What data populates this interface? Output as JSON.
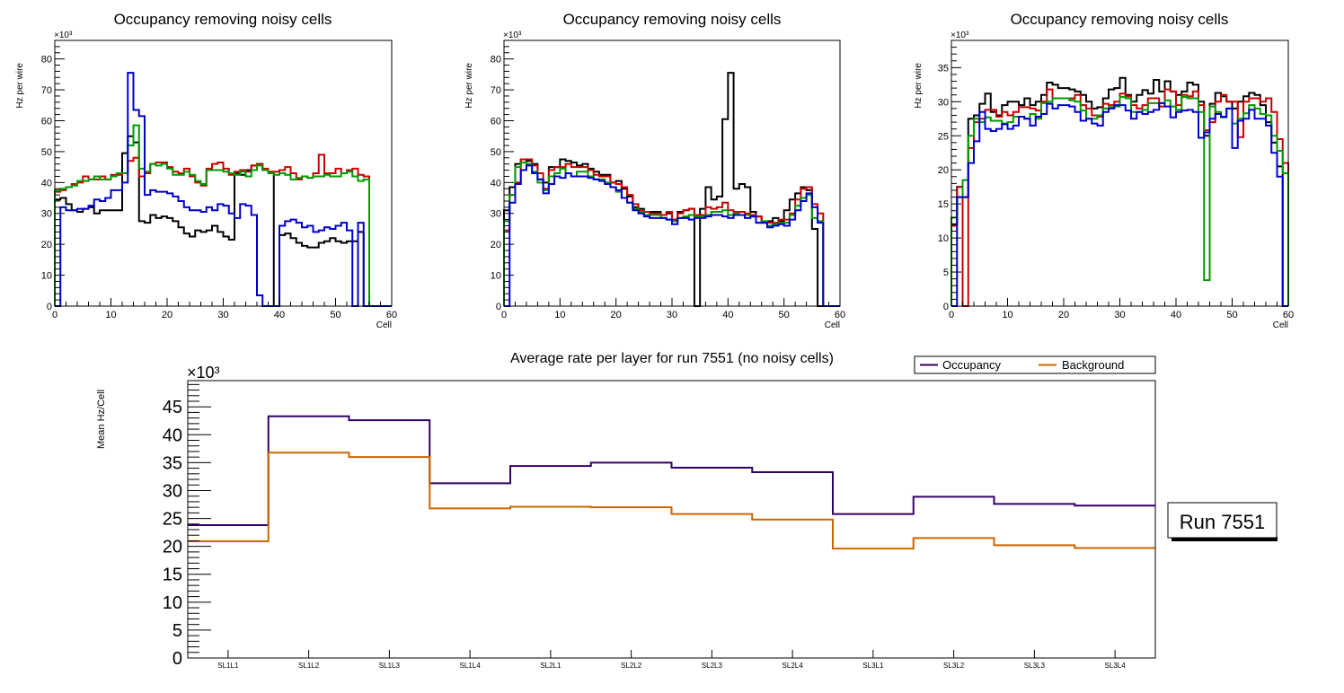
{
  "colors": {
    "black": "#000000",
    "red": "#cc0000",
    "green": "#009900",
    "blue": "#0000cc",
    "occupancy": "#330066",
    "background": "#cc6600"
  },
  "chart_data": [
    {
      "type": "histogram-step",
      "title": "Occupancy removing noisy cells",
      "xlabel": "Cell",
      "ylabel": "Hz per wire",
      "yexponent": "×10³",
      "xlim": [
        0,
        60
      ],
      "ylim": [
        0,
        86
      ],
      "xticks": [
        0,
        10,
        20,
        30,
        40,
        50,
        60
      ],
      "yticks": [
        0,
        10,
        20,
        30,
        40,
        50,
        60,
        70,
        80
      ],
      "bin_width": 1,
      "series": [
        {
          "name": "black",
          "color": "#000000",
          "values": [
            34.5,
            35,
            33,
            31,
            30.5,
            31.5,
            32,
            30,
            31,
            31,
            31,
            31,
            49.5,
            55,
            53,
            27.5,
            27,
            29.5,
            28.5,
            29,
            28.5,
            27.5,
            25.5,
            23.5,
            22.5,
            24.5,
            24,
            24.5,
            26,
            24,
            22.5,
            21.5,
            43,
            42.5,
            44,
            45.5,
            46,
            44,
            43,
            0,
            23,
            23.5,
            22,
            20.5,
            19.5,
            19,
            19,
            20.5,
            21,
            22,
            21,
            20.5,
            21,
            21,
            24,
            0,
            0,
            0,
            0,
            0
          ]
        },
        {
          "name": "red",
          "color": "#cc0000",
          "values": [
            37,
            37.5,
            38.5,
            39.5,
            40,
            42,
            41,
            41,
            42,
            41,
            42.5,
            42.5,
            43,
            47,
            48,
            42,
            43,
            46,
            46.5,
            46.5,
            45,
            43.5,
            43,
            44.5,
            42,
            40,
            39,
            44.5,
            46,
            46.5,
            44.5,
            42.5,
            43.5,
            44,
            43.5,
            45.5,
            46,
            44.5,
            43.5,
            43.5,
            44,
            45,
            43,
            41,
            42,
            41.5,
            43,
            49,
            43,
            43,
            44.5,
            43,
            44,
            44.5,
            42.5,
            42,
            0,
            0,
            0,
            0
          ]
        },
        {
          "name": "green",
          "color": "#009900",
          "values": [
            37.5,
            38,
            38.5,
            39,
            40.5,
            40.5,
            41,
            42,
            41,
            41,
            42,
            43,
            43,
            52,
            58.5,
            44.5,
            43.5,
            46,
            45.5,
            46,
            44.5,
            42.5,
            42.5,
            43.5,
            42.5,
            40.5,
            39.5,
            44,
            44,
            44,
            43.5,
            43,
            42.5,
            43.5,
            42,
            44,
            45.5,
            44,
            43,
            42.5,
            43,
            42.5,
            41,
            41.5,
            42,
            41.5,
            42,
            42,
            42.5,
            42,
            42,
            43,
            43.5,
            42,
            40.5,
            41,
            0,
            0,
            0,
            0
          ]
        },
        {
          "name": "blue",
          "color": "#0000cc",
          "values": [
            0,
            32,
            31,
            31,
            31.5,
            31.5,
            32.5,
            34.5,
            34,
            35,
            37.5,
            37.5,
            40,
            75.5,
            63.5,
            61.5,
            36,
            37.5,
            37,
            37,
            36.5,
            35.5,
            34,
            32,
            31,
            31,
            30.5,
            32,
            31,
            33,
            32.5,
            30,
            28.5,
            33,
            32.5,
            29.5,
            3.5,
            0,
            0,
            0,
            26,
            27.5,
            28,
            27,
            25.5,
            26,
            24,
            24.5,
            25.5,
            25,
            26,
            27,
            24.5,
            0,
            27,
            0,
            0,
            0,
            0,
            0
          ]
        }
      ]
    },
    {
      "type": "histogram-step",
      "title": "Occupancy removing noisy cells",
      "xlabel": "Cell",
      "ylabel": "Hz per wire",
      "yexponent": "×10³",
      "xlim": [
        0,
        60
      ],
      "ylim": [
        0,
        86
      ],
      "xticks": [
        0,
        10,
        20,
        30,
        40,
        50,
        60
      ],
      "yticks": [
        0,
        10,
        20,
        30,
        40,
        50,
        60,
        70,
        80
      ],
      "bin_width": 1,
      "series": [
        {
          "name": "black",
          "color": "#000000",
          "values": [
            31,
            38.5,
            46,
            47.5,
            47,
            46,
            41,
            40,
            45,
            45,
            47.5,
            47,
            46.5,
            45.5,
            46,
            44.5,
            43.5,
            42.5,
            42.5,
            40,
            40.5,
            38,
            35.5,
            32,
            31.5,
            30.5,
            30.5,
            30.5,
            29.5,
            30,
            28,
            30.5,
            31,
            31.5,
            0,
            31.5,
            38.5,
            34.5,
            35.5,
            60.5,
            75.5,
            38,
            39.5,
            38.5,
            30.5,
            29,
            27,
            27.5,
            28.5,
            27.5,
            31,
            34.5,
            36.5,
            38.5,
            37.5,
            25,
            0,
            0,
            0,
            0
          ]
        },
        {
          "name": "red",
          "color": "#cc0000",
          "values": [
            24.5,
            36,
            40,
            47.5,
            47.5,
            45.5,
            43,
            38,
            44,
            45,
            45,
            46,
            45,
            45,
            45,
            44,
            42.5,
            42,
            42,
            40,
            39.5,
            38.5,
            36,
            33,
            31,
            30.5,
            30,
            30,
            29.5,
            30.5,
            28,
            30,
            31,
            31.5,
            29.5,
            29.5,
            32,
            31.5,
            32,
            33.5,
            31,
            30.5,
            30.5,
            30,
            29.5,
            29,
            27,
            27,
            27,
            28,
            28,
            30,
            34.5,
            38,
            38.5,
            33,
            30,
            0,
            0,
            0
          ]
        },
        {
          "name": "green",
          "color": "#009900",
          "values": [
            27.5,
            36,
            45,
            46.5,
            46,
            43.5,
            40,
            37.5,
            42,
            43,
            44.5,
            43,
            42,
            43.5,
            43.5,
            42,
            41,
            41,
            40,
            38.5,
            37,
            35,
            33.5,
            31.5,
            30.5,
            29.5,
            29.5,
            29.5,
            28.5,
            28,
            27.5,
            28.5,
            29,
            29.5,
            29,
            29,
            29.5,
            30.5,
            30.5,
            31,
            29.5,
            30,
            29.5,
            29.5,
            29,
            27,
            27.5,
            26,
            26.5,
            27,
            27,
            29.5,
            32.5,
            35,
            36,
            28.5,
            27.5,
            0,
            0,
            0
          ]
        },
        {
          "name": "blue",
          "color": "#0000cc",
          "values": [
            0,
            33.5,
            39.5,
            44,
            45.5,
            43,
            41,
            36.5,
            39.5,
            42,
            41.5,
            43,
            42,
            42,
            42,
            41.5,
            41,
            40.5,
            39.5,
            38.5,
            37.5,
            35,
            33.5,
            31,
            30,
            29,
            28.5,
            28.5,
            28.5,
            28,
            26.5,
            28.5,
            28.5,
            28,
            28.5,
            28.5,
            29,
            29.5,
            29.5,
            29,
            28.5,
            29.5,
            29.5,
            28.5,
            29,
            27,
            27,
            25.5,
            26,
            26.5,
            26,
            28,
            31,
            34,
            36.5,
            32,
            27,
            0,
            0,
            0
          ]
        }
      ]
    },
    {
      "type": "histogram-step",
      "title": "Occupancy removing noisy cells",
      "xlabel": "Cell",
      "ylabel": "Hz per wire",
      "yexponent": "×10³",
      "xlim": [
        0,
        60
      ],
      "ylim": [
        0,
        39
      ],
      "xticks": [
        0,
        10,
        20,
        30,
        40,
        50,
        60
      ],
      "yticks": [
        0,
        5,
        10,
        15,
        20,
        25,
        30,
        35
      ],
      "bin_width": 1,
      "series": [
        {
          "name": "black",
          "color": "#000000",
          "values": [
            12,
            17.5,
            16,
            27.5,
            28,
            29.7,
            31.2,
            28.5,
            28,
            29.5,
            30,
            30,
            29.5,
            30.5,
            29.5,
            30,
            31,
            32.8,
            32.5,
            32,
            32,
            31.8,
            31.5,
            31,
            30,
            29,
            29.2,
            30.5,
            31.8,
            32,
            33.5,
            31,
            30,
            31,
            31.7,
            31.2,
            33.2,
            31.5,
            33,
            31.5,
            31,
            31.5,
            32.8,
            32.5,
            30,
            25,
            29.7,
            31.3,
            30.8,
            30,
            29,
            30,
            30.8,
            31.3,
            31,
            29.5,
            27,
            24,
            20.5,
            0
          ]
        },
        {
          "name": "red",
          "color": "#cc0000",
          "values": [
            11.8,
            17.5,
            0,
            23.2,
            27,
            27.5,
            28.8,
            28.8,
            27.8,
            28.5,
            28,
            28.5,
            29.2,
            29.2,
            29,
            28.7,
            30,
            31.8,
            30.5,
            30.5,
            30.5,
            30.5,
            31,
            29.5,
            29,
            28,
            27.8,
            29.7,
            29.5,
            30,
            31.2,
            30.8,
            29.5,
            29,
            29.5,
            30.5,
            30.5,
            29.3,
            31.8,
            31.5,
            29.5,
            31,
            30.8,
            31.5,
            29.5,
            25.8,
            27,
            30,
            31,
            30,
            30,
            24.8,
            30,
            30.5,
            30.5,
            30,
            30.5,
            28.5,
            24.5,
            21
          ]
        },
        {
          "name": "green",
          "color": "#009900",
          "values": [
            13,
            16,
            18.5,
            25,
            27.5,
            27,
            27.7,
            27.2,
            27.2,
            26.8,
            27,
            27.8,
            27.8,
            27.5,
            28.2,
            27.5,
            29.8,
            30,
            30.5,
            30.5,
            30.5,
            30.2,
            30,
            28.7,
            27.5,
            27.5,
            28,
            29,
            29.2,
            29.3,
            30.7,
            30.5,
            28.5,
            28.5,
            28.8,
            29.8,
            29.8,
            29.8,
            30.2,
            29.3,
            28.8,
            30.7,
            30.5,
            30.5,
            28.5,
            3.8,
            29.3,
            28.5,
            27.7,
            29,
            26.8,
            27.5,
            28.3,
            29.5,
            29,
            28.2,
            28,
            25,
            22.8,
            19.5
          ]
        },
        {
          "name": "blue",
          "color": "#0000cc",
          "values": [
            0,
            16,
            16,
            21,
            24.2,
            28.5,
            26,
            25.7,
            26,
            26.7,
            26,
            26.5,
            27.8,
            27.5,
            26.5,
            27.8,
            28.2,
            29.7,
            29,
            29.5,
            29.5,
            29.3,
            28.5,
            27.2,
            27.5,
            26.8,
            26.5,
            28.5,
            29,
            29.5,
            29.5,
            28.7,
            27.5,
            28.5,
            28.2,
            28.5,
            28.8,
            29.8,
            29.3,
            27.7,
            28.5,
            28.7,
            28.8,
            28.5,
            24.7,
            25.5,
            27.5,
            28.2,
            27.8,
            29,
            23.2,
            27.2,
            27.5,
            28.8,
            27.5,
            27.5,
            26.5,
            22.5,
            19,
            0
          ]
        }
      ]
    },
    {
      "type": "histogram-step",
      "title": "Average rate per layer for run 7551 (no noisy cells)",
      "xlabel": "",
      "ylabel": "Mean Hz/Cell",
      "yexponent": "×10³",
      "categories": [
        "SL1L1",
        "SL1L2",
        "SL1L3",
        "SL1L4",
        "SL2L1",
        "SL2L2",
        "SL2L3",
        "SL2L4",
        "SL3L1",
        "SL3L2",
        "SL3L3",
        "SL3L4"
      ],
      "ylim": [
        0,
        49.7
      ],
      "yticks": [
        0,
        5,
        10,
        15,
        20,
        25,
        30,
        35,
        40,
        45
      ],
      "legend": {
        "position": "top-right",
        "entries": [
          "Occupancy",
          "Background"
        ]
      },
      "series": [
        {
          "name": "Occupancy",
          "color": "#330066",
          "values": [
            23.8,
            43.3,
            42.6,
            31.3,
            34.4,
            35.0,
            34.1,
            33.3,
            25.8,
            28.9,
            27.6,
            27.3
          ]
        },
        {
          "name": "Background",
          "color": "#cc6600",
          "values": [
            20.9,
            36.8,
            36.0,
            26.8,
            27.1,
            27.0,
            25.8,
            24.8,
            19.6,
            21.5,
            20.2,
            19.7
          ]
        }
      ],
      "annotation": "Run 7551"
    }
  ]
}
